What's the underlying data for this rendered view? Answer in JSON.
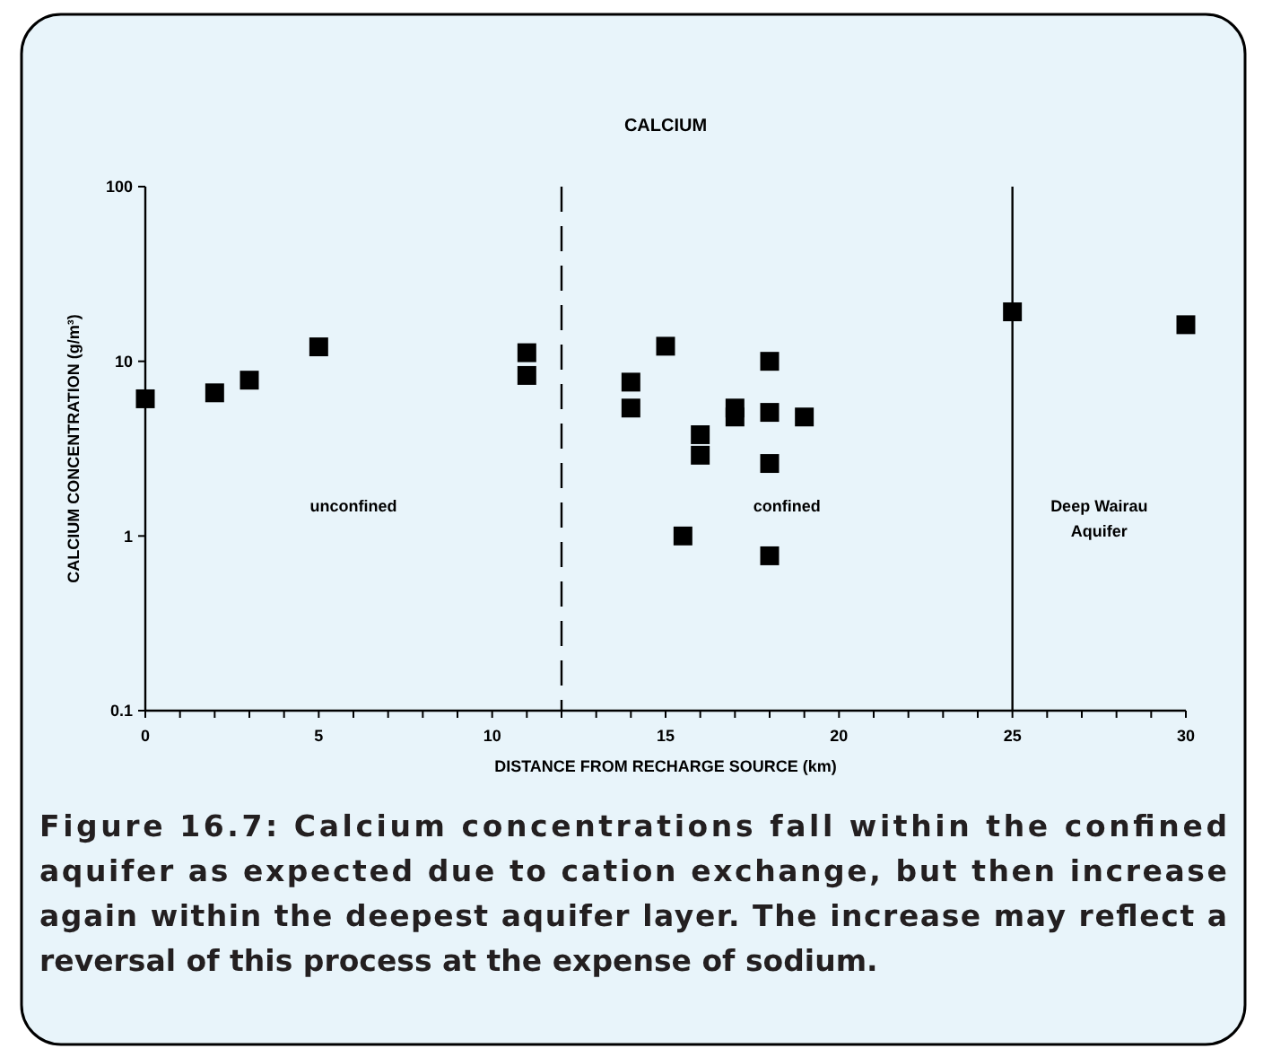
{
  "chart_data": {
    "type": "scatter",
    "title": "CALCIUM",
    "xlabel": "DISTANCE FROM RECHARGE SOURCE (km)",
    "ylabel": "CALCIUM CONCENTRATION (g/m³)",
    "x": [
      0,
      2,
      3,
      5,
      11,
      11,
      14,
      14,
      15,
      15.5,
      16,
      16,
      17,
      17,
      18,
      18,
      18,
      18,
      19,
      25,
      30
    ],
    "series": [
      {
        "color": "#000000",
        "values": [
          6.1,
          6.6,
          7.8,
          12.1,
          11.2,
          8.3,
          7.6,
          5.4,
          12.2,
          1.0,
          3.8,
          2.9,
          5.4,
          4.8,
          10,
          5.1,
          2.6,
          0.77,
          4.8,
          19.2,
          16.2
        ]
      }
    ],
    "marker": "square",
    "log": "y",
    "grid": false,
    "xlim": [
      0,
      30
    ],
    "ylim": [
      0.1,
      100
    ],
    "xticks": [
      0,
      {
        "value": 1,
        "label": null
      },
      {
        "value": 2,
        "label": null
      },
      {
        "value": 3,
        "label": null
      },
      {
        "value": 4,
        "label": null
      },
      5,
      {
        "value": 6,
        "label": null
      },
      {
        "value": 7,
        "label": null
      },
      {
        "value": 8,
        "label": null
      },
      {
        "value": 9,
        "label": null
      },
      10,
      {
        "value": 11,
        "label": null
      },
      {
        "value": 12,
        "label": null
      },
      {
        "value": 13,
        "label": null
      },
      {
        "value": 14,
        "label": null
      },
      15,
      {
        "value": 16,
        "label": null
      },
      {
        "value": 17,
        "label": null
      },
      {
        "value": 18,
        "label": null
      },
      {
        "value": 19,
        "label": null
      },
      20,
      {
        "value": 21,
        "label": null
      },
      {
        "value": 22,
        "label": null
      },
      {
        "value": 23,
        "label": null
      },
      {
        "value": 24,
        "label": null
      },
      25,
      {
        "value": 26,
        "label": null
      },
      {
        "value": 27,
        "label": null
      },
      {
        "value": 28,
        "label": null
      },
      {
        "value": 29,
        "label": null
      },
      30
    ],
    "yticks": [
      0.1,
      1,
      10,
      100
    ],
    "ref_lines": [
      {
        "axis": "x",
        "value": 12,
        "line_style": "dashed",
        "color": "#000000"
      },
      {
        "axis": "x",
        "value": 25,
        "line_style": "solid",
        "color": "#000000"
      }
    ],
    "annotations": [
      "unconfined",
      "confined",
      "Deep Wairau\nAquifer",
      "Figure 16.7:  Calcium concentrations fall within the confined aquifer as expected due to cation exchange, but then increase again within the deepest aquifer layer. The increase may reflect a reversal of this process at the expense of sodium."
    ]
  }
}
